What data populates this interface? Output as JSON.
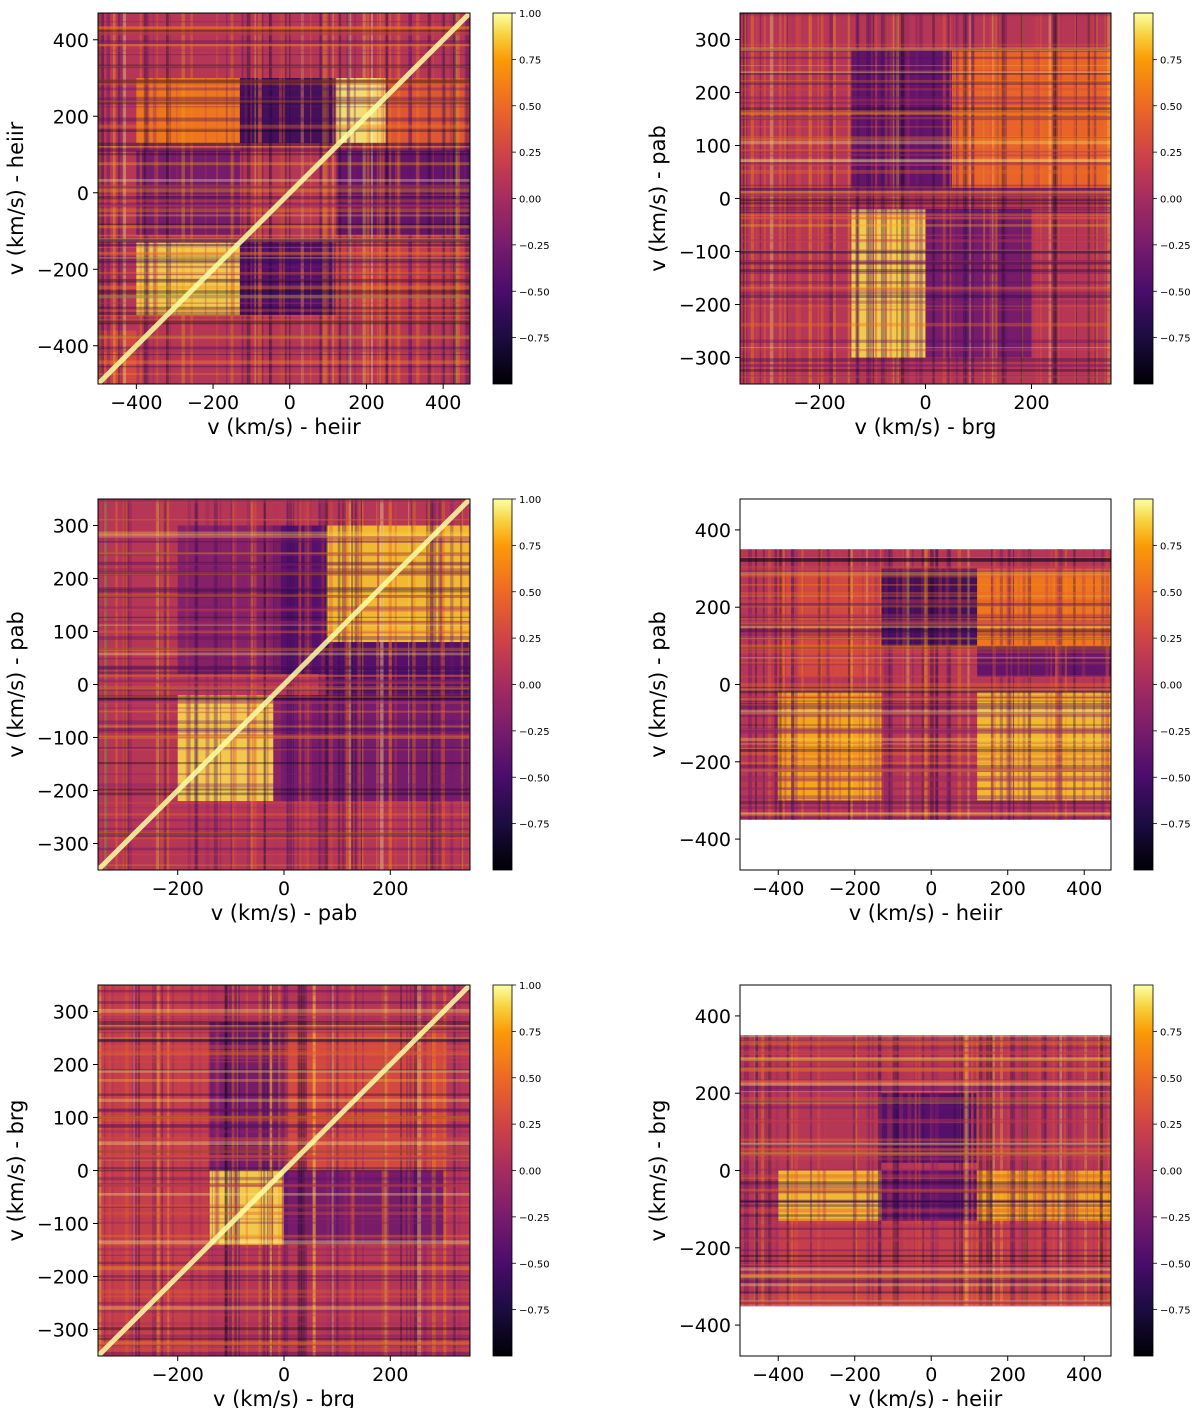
{
  "chart_data": [
    {
      "type": "heatmap",
      "xlabel": "v (km/s) - heiir",
      "ylabel": "v (km/s) - heiir",
      "xlim": [
        -500,
        470
      ],
      "ylim": [
        -500,
        470
      ],
      "xticks": [
        "−400",
        "−200",
        "0",
        "200",
        "400"
      ],
      "yticks": [
        "−400",
        "−200",
        "0",
        "200",
        "400"
      ],
      "colorbar_ticks": [
        "−0.75",
        "−0.50",
        "−0.25",
        "0.00",
        "0.25",
        "0.50",
        "0.75",
        "1.00"
      ],
      "colorbar_range": [
        -1.0,
        1.0
      ],
      "blocks": [
        {
          "x": [
            -500,
            -400
          ],
          "y": [
            -500,
            -360
          ],
          "v": 0.3
        },
        {
          "x": [
            -400,
            -130
          ],
          "y": [
            -320,
            -130
          ],
          "v": 0.9
        },
        {
          "x": [
            -130,
            120
          ],
          "y": [
            -320,
            -130
          ],
          "v": -0.5
        },
        {
          "x": [
            120,
            470
          ],
          "y": [
            -320,
            -130
          ],
          "v": 0.2
        },
        {
          "x": [
            -400,
            -130
          ],
          "y": [
            -110,
            110
          ],
          "v": -0.3
        },
        {
          "x": [
            120,
            470
          ],
          "y": [
            -110,
            110
          ],
          "v": -0.4
        },
        {
          "x": [
            -400,
            -130
          ],
          "y": [
            130,
            300
          ],
          "v": 0.6
        },
        {
          "x": [
            -130,
            120
          ],
          "y": [
            130,
            300
          ],
          "v": -0.6
        },
        {
          "x": [
            120,
            250
          ],
          "y": [
            130,
            300
          ],
          "v": 0.95
        },
        {
          "x": [
            250,
            470
          ],
          "y": [
            130,
            300
          ],
          "v": 0.4
        }
      ],
      "diagonal": true
    },
    {
      "type": "heatmap",
      "xlabel": "v (km/s) - brg",
      "ylabel": "v (km/s) - pab",
      "xlim": [
        -350,
        350
      ],
      "ylim": [
        -350,
        350
      ],
      "xticks": [
        "−200",
        "0",
        "200"
      ],
      "yticks": [
        "−300",
        "−200",
        "−100",
        "0",
        "100",
        "200",
        "300"
      ],
      "colorbar_ticks": [
        "−0.75",
        "−0.50",
        "−0.25",
        "0.00",
        "0.25",
        "0.50",
        "0.75"
      ],
      "colorbar_range": [
        -1.0,
        1.0
      ],
      "blocks": [
        {
          "x": [
            -140,
            0
          ],
          "y": [
            -300,
            -20
          ],
          "v": 0.9
        },
        {
          "x": [
            0,
            200
          ],
          "y": [
            -300,
            -20
          ],
          "v": -0.3
        },
        {
          "x": [
            -140,
            50
          ],
          "y": [
            20,
            280
          ],
          "v": -0.4
        },
        {
          "x": [
            50,
            350
          ],
          "y": [
            20,
            280
          ],
          "v": 0.5
        },
        {
          "x": [
            -350,
            -140
          ],
          "y": [
            -300,
            300
          ],
          "v": 0.1
        }
      ],
      "diagonal": false
    },
    {
      "type": "heatmap",
      "xlabel": "v (km/s) - pab",
      "ylabel": "v (km/s) - pab",
      "xlim": [
        -350,
        350
      ],
      "ylim": [
        -350,
        350
      ],
      "xticks": [
        "−200",
        "0",
        "200"
      ],
      "yticks": [
        "−300",
        "−200",
        "−100",
        "0",
        "100",
        "200",
        "300"
      ],
      "colorbar_ticks": [
        "−0.75",
        "−0.50",
        "−0.25",
        "0.00",
        "0.25",
        "0.50",
        "0.75",
        "1.00"
      ],
      "colorbar_range": [
        -1.0,
        1.0
      ],
      "blocks": [
        {
          "x": [
            -200,
            -20
          ],
          "y": [
            -220,
            -20
          ],
          "v": 0.9
        },
        {
          "x": [
            -20,
            350
          ],
          "y": [
            -220,
            -20
          ],
          "v": -0.3
        },
        {
          "x": [
            -200,
            -20
          ],
          "y": [
            20,
            300
          ],
          "v": -0.2
        },
        {
          "x": [
            -20,
            80
          ],
          "y": [
            20,
            300
          ],
          "v": -0.5
        },
        {
          "x": [
            80,
            350
          ],
          "y": [
            80,
            300
          ],
          "v": 0.85
        },
        {
          "x": [
            80,
            350
          ],
          "y": [
            -20,
            80
          ],
          "v": -0.5
        }
      ],
      "diagonal": true
    },
    {
      "type": "heatmap",
      "xlabel": "v (km/s) - heiir",
      "ylabel": "v (km/s) - pab",
      "xlim": [
        -500,
        470
      ],
      "ylim": [
        -480,
        480
      ],
      "data_ylim": [
        -350,
        350
      ],
      "xticks": [
        "−400",
        "−200",
        "0",
        "200",
        "400"
      ],
      "yticks": [
        "−400",
        "−200",
        "0",
        "200",
        "400"
      ],
      "colorbar_ticks": [
        "−0.75",
        "−0.50",
        "−0.25",
        "0.00",
        "0.25",
        "0.50",
        "0.75"
      ],
      "colorbar_range": [
        -1.0,
        1.0
      ],
      "blocks": [
        {
          "x": [
            -400,
            -130
          ],
          "y": [
            -300,
            -20
          ],
          "v": 0.8
        },
        {
          "x": [
            -130,
            120
          ],
          "y": [
            -300,
            -20
          ],
          "v": 0.1
        },
        {
          "x": [
            120,
            470
          ],
          "y": [
            -300,
            -20
          ],
          "v": 0.85
        },
        {
          "x": [
            -400,
            -130
          ],
          "y": [
            20,
            300
          ],
          "v": 0.3
        },
        {
          "x": [
            -130,
            120
          ],
          "y": [
            100,
            300
          ],
          "v": -0.6
        },
        {
          "x": [
            120,
            470
          ],
          "y": [
            100,
            300
          ],
          "v": 0.6
        },
        {
          "x": [
            120,
            470
          ],
          "y": [
            20,
            100
          ],
          "v": -0.4
        }
      ],
      "diagonal": false
    },
    {
      "type": "heatmap",
      "xlabel": "v (km/s) - brg",
      "ylabel": "v (km/s) - brg",
      "xlim": [
        -350,
        350
      ],
      "ylim": [
        -350,
        350
      ],
      "xticks": [
        "−200",
        "0",
        "200"
      ],
      "yticks": [
        "−300",
        "−200",
        "−100",
        "0",
        "100",
        "200",
        "300"
      ],
      "colorbar_ticks": [
        "−0.75",
        "−0.50",
        "−0.25",
        "0.00",
        "0.25",
        "0.50",
        "0.75",
        "1.00"
      ],
      "colorbar_range": [
        -1.0,
        1.0
      ],
      "blocks": [
        {
          "x": [
            -140,
            0
          ],
          "y": [
            -140,
            0
          ],
          "v": 0.9
        },
        {
          "x": [
            0,
            300
          ],
          "y": [
            -140,
            0
          ],
          "v": -0.3
        },
        {
          "x": [
            -140,
            0
          ],
          "y": [
            0,
            280
          ],
          "v": -0.3
        },
        {
          "x": [
            0,
            300
          ],
          "y": [
            0,
            280
          ],
          "v": 0.3
        },
        {
          "x": [
            -350,
            -140
          ],
          "y": [
            -350,
            350
          ],
          "v": 0.2
        }
      ],
      "diagonal": true
    },
    {
      "type": "heatmap",
      "xlabel": "v (km/s) - heiir",
      "ylabel": "v (km/s) - brg",
      "xlim": [
        -500,
        470
      ],
      "ylim": [
        -480,
        480
      ],
      "data_ylim": [
        -350,
        350
      ],
      "xticks": [
        "−400",
        "−200",
        "0",
        "200",
        "400"
      ],
      "yticks": [
        "−400",
        "−200",
        "0",
        "200",
        "400"
      ],
      "colorbar_ticks": [
        "−0.75",
        "−0.50",
        "−0.25",
        "0.00",
        "0.25",
        "0.50",
        "0.75"
      ],
      "colorbar_range": [
        -1.0,
        1.0
      ],
      "blocks": [
        {
          "x": [
            -400,
            -130
          ],
          "y": [
            -130,
            0
          ],
          "v": 0.85
        },
        {
          "x": [
            -130,
            120
          ],
          "y": [
            -130,
            0
          ],
          "v": -0.4
        },
        {
          "x": [
            120,
            470
          ],
          "y": [
            -130,
            0
          ],
          "v": 0.8
        },
        {
          "x": [
            -130,
            120
          ],
          "y": [
            20,
            200
          ],
          "v": -0.5
        },
        {
          "x": [
            -400,
            470
          ],
          "y": [
            -350,
            -130
          ],
          "v": 0.2
        }
      ],
      "diagonal": false
    }
  ]
}
